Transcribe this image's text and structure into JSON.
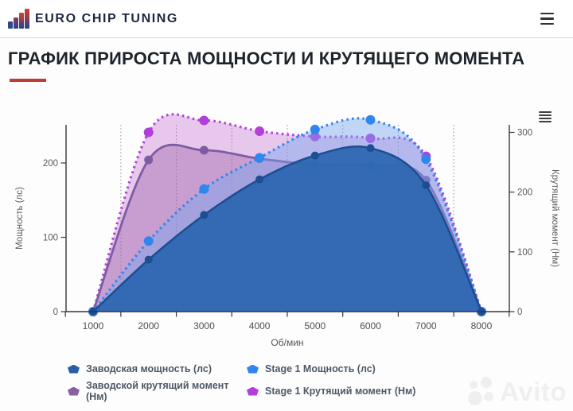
{
  "header": {
    "brand": "EURO CHIP TUNING"
  },
  "page": {
    "title": "ГРАФИК ПРИРОСТА МОЩНОСТИ И КРУТЯЩЕГО МОМЕНТА"
  },
  "chart_data": {
    "type": "area",
    "x": [
      1000,
      2000,
      3000,
      4000,
      5000,
      6000,
      7000,
      8000
    ],
    "xlabel": "Об/мин",
    "axes": {
      "left": {
        "title": "Мощность (лс)",
        "ticks": [
          0,
          100,
          200
        ]
      },
      "right": {
        "title": "Крутящий момент (Нм)",
        "ticks": [
          0,
          100,
          200,
          300
        ]
      }
    },
    "grid": {
      "vertical_dotted_between_categories": true,
      "horizontal": false
    },
    "legend_position": "bottom",
    "series": [
      {
        "name": "Stage 1 Крутящий момент (Нм)",
        "axis": "right",
        "line": "dotted",
        "color": "#b23fd9",
        "fill": "rgba(190,105,205,0.36)",
        "line_width": 3.2,
        "marker_radius": 6,
        "values": [
          0,
          300,
          320,
          302,
          293,
          290,
          260,
          0
        ]
      },
      {
        "name": "Заводской крутящий момент (Нм)",
        "axis": "right",
        "line": "solid",
        "color": "#7d5ca3",
        "fill": "rgba(150,90,165,0.38)",
        "line_width": 2.8,
        "marker_radius": 5.5,
        "values": [
          0,
          254,
          270,
          256,
          246,
          244,
          220,
          0
        ]
      },
      {
        "name": "Stage 1 Мощность (лс)",
        "axis": "left",
        "line": "dotted",
        "color": "#2f86ee",
        "fill": "rgba(120,165,240,0.45)",
        "line_width": 3.2,
        "marker_radius": 6,
        "values": [
          0,
          95,
          165,
          207,
          245,
          258,
          205,
          0
        ]
      },
      {
        "name": "Заводская мощность (лс)",
        "axis": "left",
        "line": "solid",
        "color": "#1c4e92",
        "fill": "rgba(43,102,176,0.93)",
        "line_width": 2.5,
        "marker_radius": 5,
        "values": [
          0,
          70,
          130,
          178,
          210,
          220,
          170,
          0
        ]
      }
    ]
  },
  "legend": {
    "items": [
      {
        "label": "Заводская мощность (лс)",
        "color": "#2a5fa8"
      },
      {
        "label": "Stage 1 Мощность (лс)",
        "color": "#2f86ee"
      },
      {
        "label": "Заводской крутящий момент (Нм)",
        "color": "#8a5fa6"
      },
      {
        "label": "Stage 1 Крутящий момент (Нм)",
        "color": "#b23fd9"
      }
    ]
  },
  "watermark": {
    "text": "Avito"
  }
}
